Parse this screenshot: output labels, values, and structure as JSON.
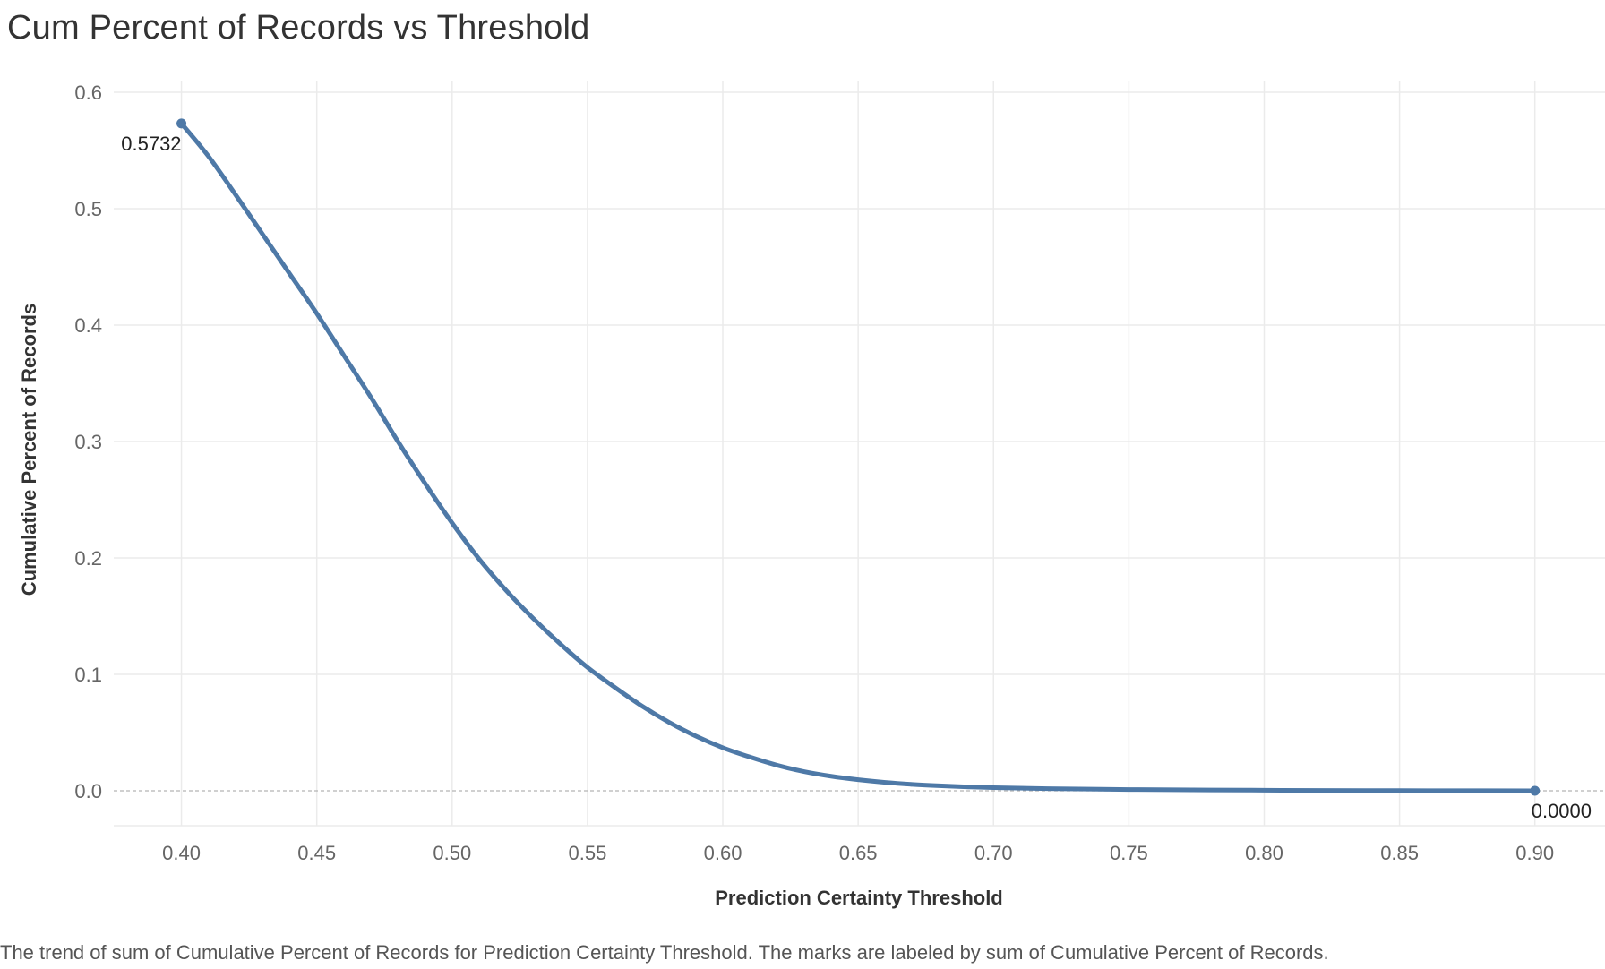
{
  "chart_data": {
    "type": "line",
    "title": "Cum Percent of Records vs Threshold",
    "xlabel": "Prediction Certainty Threshold",
    "ylabel": "Cumulative Percent of Records",
    "caption": "The trend of sum of Cumulative Percent of Records for Prediction Certainty Threshold.  The marks are labeled by sum of Cumulative Percent of Records.",
    "xlim": [
      0.375,
      0.9
    ],
    "ylim": [
      -0.03,
      0.61
    ],
    "x_ticks": [
      "0.40",
      "0.45",
      "0.50",
      "0.55",
      "0.60",
      "0.65",
      "0.70",
      "0.75",
      "0.80",
      "0.85",
      "0.90"
    ],
    "y_ticks": [
      "0.0",
      "0.1",
      "0.2",
      "0.3",
      "0.4",
      "0.5",
      "0.6"
    ],
    "grid": true,
    "series": [
      {
        "x": [
          0.4,
          0.41,
          0.42,
          0.43,
          0.44,
          0.45,
          0.46,
          0.47,
          0.48,
          0.49,
          0.5,
          0.51,
          0.52,
          0.53,
          0.54,
          0.55,
          0.56,
          0.57,
          0.58,
          0.59,
          0.6,
          0.61,
          0.62,
          0.63,
          0.64,
          0.65,
          0.66,
          0.67,
          0.68,
          0.69,
          0.7,
          0.72,
          0.75,
          0.78,
          0.8,
          0.82,
          0.85,
          0.88,
          0.9
        ],
        "y": [
          0.5732,
          0.545,
          0.512,
          0.478,
          0.444,
          0.41,
          0.374,
          0.338,
          0.3,
          0.264,
          0.23,
          0.199,
          0.172,
          0.148,
          0.126,
          0.106,
          0.089,
          0.073,
          0.059,
          0.047,
          0.037,
          0.029,
          0.022,
          0.0165,
          0.0125,
          0.0095,
          0.0072,
          0.0055,
          0.0043,
          0.0034,
          0.0027,
          0.0018,
          0.0011,
          0.0007,
          0.0005,
          0.0003,
          0.00015,
          5e-05,
          0.0
        ]
      }
    ],
    "data_labels": [
      {
        "x": 0.4,
        "y": 0.5732,
        "text": "0.5732"
      },
      {
        "x": 0.9,
        "y": 0.0,
        "text": "0.0000"
      }
    ],
    "colors": {
      "line": "#4e79a7",
      "grid": "#ebebeb",
      "zero_line": "#b4b4b4"
    }
  }
}
